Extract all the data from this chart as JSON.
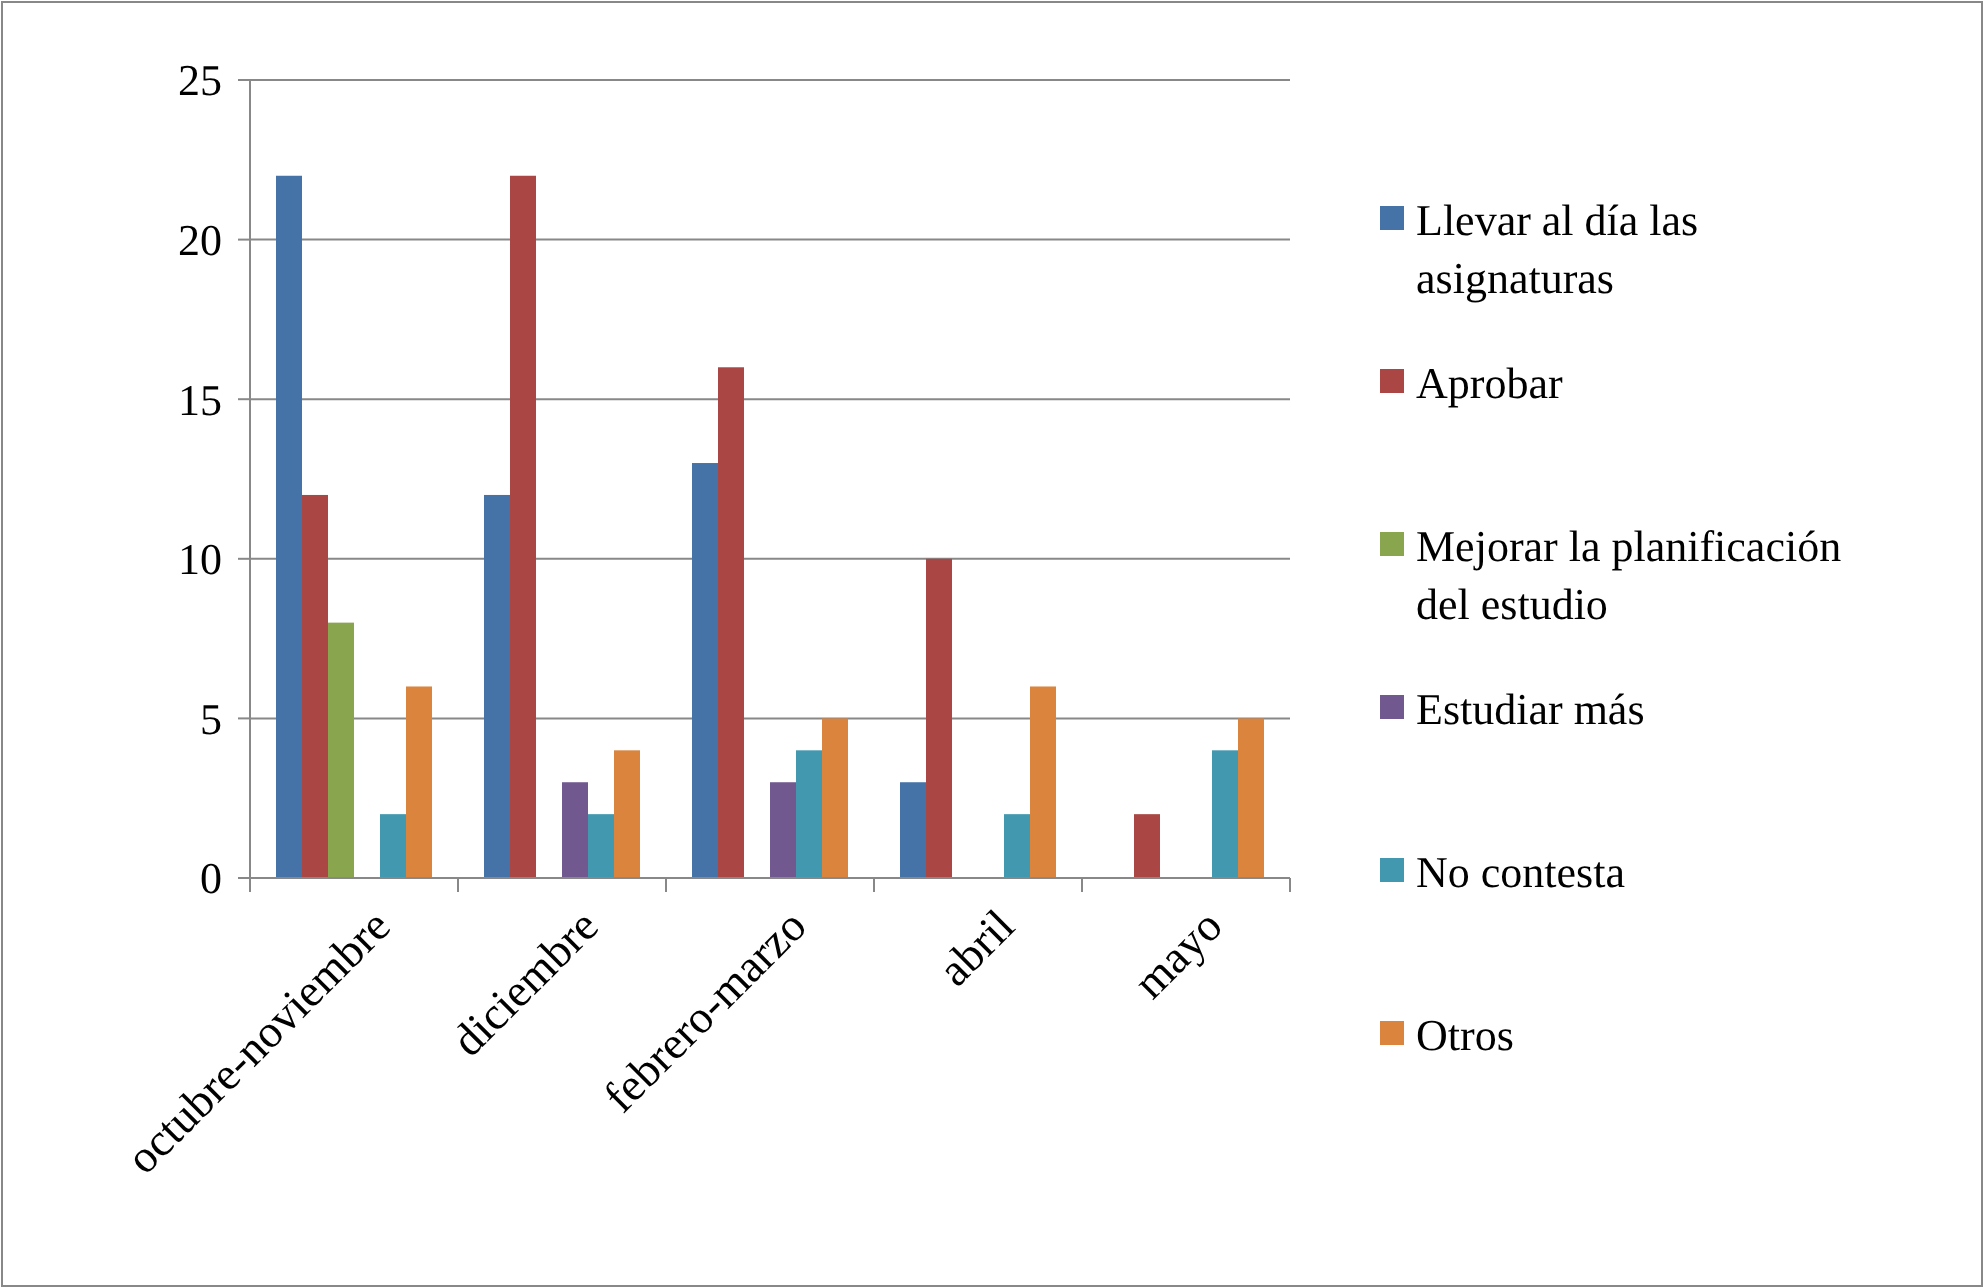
{
  "chart_data": {
    "type": "bar",
    "categories": [
      "octubre-noviembre",
      "diciembre",
      "febrero-marzo",
      "abril",
      "mayo"
    ],
    "series": [
      {
        "name": "Llevar al día las asignaturas",
        "color": "#4572a7",
        "values": [
          22,
          12,
          13,
          3,
          0
        ]
      },
      {
        "name": "Aprobar",
        "color": "#aa4643",
        "values": [
          12,
          22,
          16,
          10,
          2
        ]
      },
      {
        "name": "Mejorar la planificación del estudio",
        "color": "#89a54e",
        "values": [
          8,
          0,
          0,
          0,
          0
        ]
      },
      {
        "name": "Estudiar más",
        "color": "#71588f",
        "values": [
          0,
          3,
          3,
          0,
          0
        ]
      },
      {
        "name": "No contesta",
        "color": "#4198af",
        "values": [
          2,
          2,
          4,
          2,
          4
        ]
      },
      {
        "name": "Otros",
        "color": "#db843d",
        "values": [
          6,
          4,
          5,
          6,
          5
        ]
      }
    ],
    "ylim": [
      0,
      25
    ],
    "yticks": [
      0,
      5,
      10,
      15,
      20,
      25
    ],
    "grid": "y",
    "legend": "right"
  }
}
